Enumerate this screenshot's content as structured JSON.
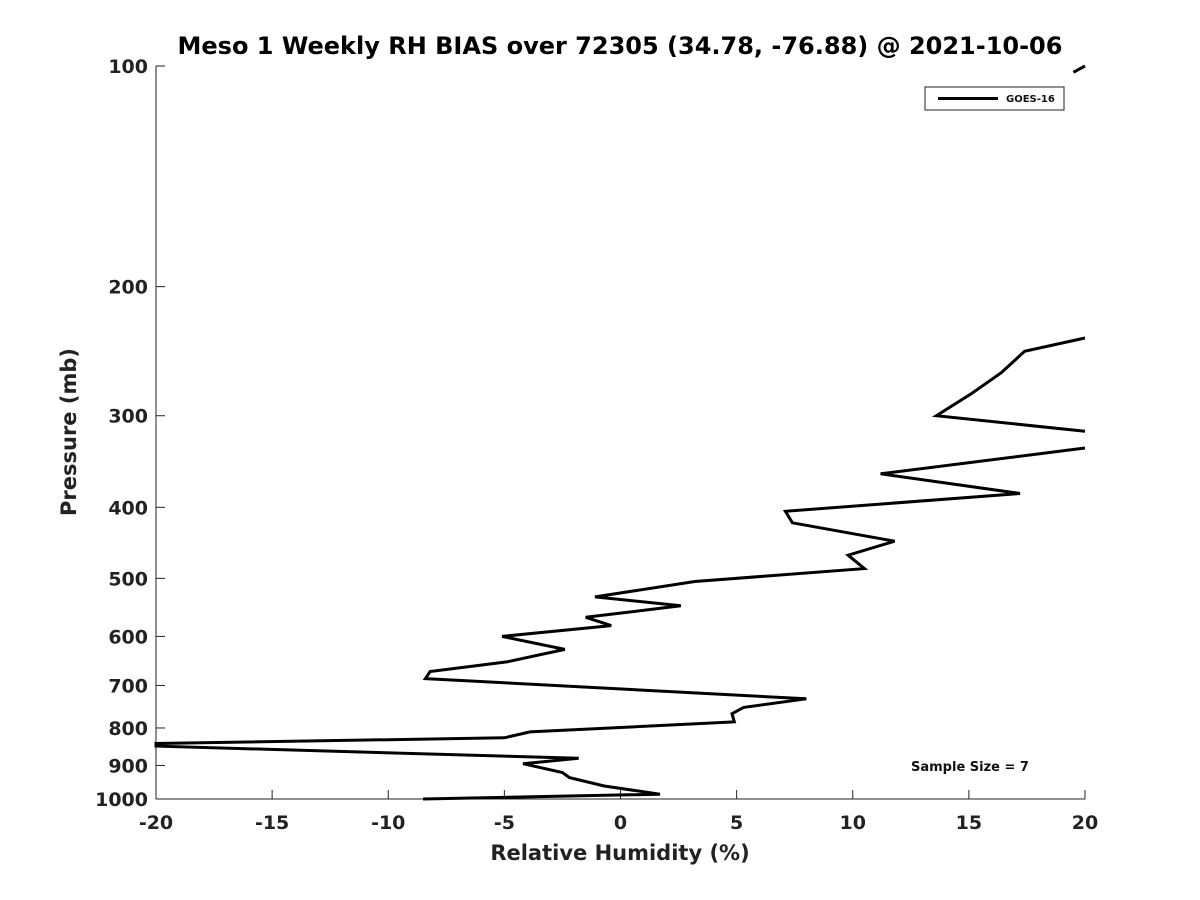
{
  "chart_data": {
    "type": "line",
    "title": "Meso 1 Weekly RH BIAS over 72305 (34.78, -76.88) @ 2021-10-06",
    "xlabel": "Relative Humidity (%)",
    "ylabel": "Pressure (mb)",
    "xlim": [
      -20,
      20
    ],
    "ylim": [
      1000,
      100
    ],
    "y_scale": "log",
    "x_ticks": [
      -20,
      -15,
      -10,
      -5,
      0,
      5,
      10,
      15,
      20
    ],
    "x_tick_labels": [
      "-20",
      "-15",
      "-10",
      "-5",
      "0",
      "5",
      "10",
      "15",
      "20"
    ],
    "y_ticks": [
      100,
      200,
      300,
      400,
      500,
      600,
      700,
      800,
      900,
      1000
    ],
    "y_tick_labels": [
      "100",
      "200",
      "300",
      "400",
      "500",
      "600",
      "700",
      "800",
      "900",
      "1000"
    ],
    "grid": false,
    "legend_position": "top-right",
    "series": [
      {
        "name": "GOES-16",
        "color": "#000000",
        "x": [
          -8.5,
          1.7,
          -0.7,
          -2.2,
          -2.5,
          -4.2,
          -1.8,
          -20,
          -20,
          -5.0,
          -3.9,
          4.9,
          4.8,
          5.3,
          8.0,
          -8.4,
          -8.2,
          -4.9,
          -2.4,
          -5.1,
          -0.4,
          -1.5,
          2.6,
          -1.1,
          3.2,
          10.5,
          9.8,
          11.8,
          7.4,
          7.1,
          17.2,
          11.2,
          20
        ],
        "y": [
          1000,
          985,
          960,
          935,
          920,
          895,
          880,
          847,
          840,
          825,
          810,
          785,
          765,
          750,
          730,
          685,
          670,
          650,
          625,
          600,
          580,
          565,
          545,
          530,
          505,
          485,
          465,
          445,
          420,
          405,
          383,
          360,
          332
        ]
      },
      {
        "name": "GOES-16",
        "color": "#000000",
        "x": [
          20,
          13.6,
          15.1,
          16.4,
          17.4,
          20
        ],
        "y": [
          315,
          300,
          280,
          262,
          245,
          235
        ]
      },
      {
        "name": "GOES-16",
        "color": "#000000",
        "x": [
          19.5,
          20
        ],
        "y": [
          102,
          100
        ]
      }
    ],
    "annotations": [
      {
        "text": "Sample Size = 7",
        "x": 16.5,
        "y": 925
      }
    ]
  }
}
